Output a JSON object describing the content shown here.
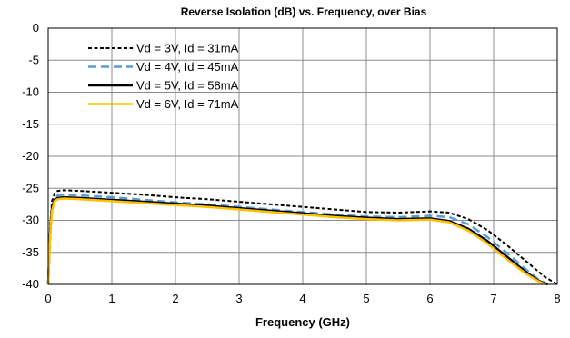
{
  "chart_data": {
    "type": "line",
    "title": "Reverse Isolation (dB) vs. Frequency, over Bias",
    "xlabel": "Frequency (GHz)",
    "ylabel": "",
    "xlim": [
      0,
      8
    ],
    "ylim": [
      -40,
      0
    ],
    "xticks": [
      "0",
      "1",
      "2",
      "3",
      "4",
      "5",
      "6",
      "7",
      "8"
    ],
    "yticks": [
      "0",
      "-5",
      "-10",
      "-15",
      "-20",
      "-25",
      "-30",
      "-35",
      "-40"
    ],
    "grid": true,
    "legend_position": "top-left",
    "series": [
      {
        "name": "Vd = 3V, Id =  31mA",
        "color": "#000000",
        "style": "dotted",
        "x": [
          0.0,
          0.03,
          0.06,
          0.1,
          0.15,
          0.25,
          0.5,
          1,
          1.5,
          2,
          2.5,
          3,
          3.5,
          4,
          4.5,
          5,
          5.5,
          6,
          6.3,
          6.6,
          6.9,
          7.2,
          7.5,
          7.8,
          8.0
        ],
        "y": [
          -40,
          -31,
          -27,
          -25.8,
          -25.4,
          -25.3,
          -25.4,
          -25.7,
          -26.0,
          -26.4,
          -26.7,
          -27.1,
          -27.5,
          -27.9,
          -28.3,
          -28.7,
          -28.8,
          -28.6,
          -28.8,
          -29.8,
          -31.5,
          -33.8,
          -36.3,
          -38.8,
          -40
        ]
      },
      {
        "name": "Vd = 4V,  Id = 45mA",
        "color": "#5b9bd5",
        "style": "dashed",
        "x": [
          0.0,
          0.03,
          0.06,
          0.1,
          0.15,
          0.25,
          0.5,
          1,
          1.5,
          2,
          2.5,
          3,
          3.5,
          4,
          4.5,
          5,
          5.5,
          6,
          6.3,
          6.6,
          6.9,
          7.2,
          7.5,
          7.7,
          7.85
        ],
        "y": [
          -40,
          -32,
          -28,
          -26.5,
          -26.1,
          -26.0,
          -26.1,
          -26.4,
          -26.8,
          -27.2,
          -27.5,
          -27.9,
          -28.3,
          -28.7,
          -29.1,
          -29.4,
          -29.5,
          -29.3,
          -29.5,
          -30.6,
          -32.6,
          -35.0,
          -37.6,
          -39.2,
          -40
        ]
      },
      {
        "name": "Vd = 5V, Id =  58mA",
        "color": "#000000",
        "style": "solid",
        "x": [
          0.0,
          0.03,
          0.06,
          0.1,
          0.15,
          0.25,
          0.5,
          1,
          1.5,
          2,
          2.5,
          3,
          3.5,
          4,
          4.5,
          5,
          5.5,
          6,
          6.3,
          6.6,
          6.9,
          7.2,
          7.5,
          7.7,
          7.85
        ],
        "y": [
          -40,
          -32,
          -28,
          -26.8,
          -26.5,
          -26.4,
          -26.5,
          -26.8,
          -27.1,
          -27.4,
          -27.7,
          -28.1,
          -28.5,
          -28.9,
          -29.3,
          -29.6,
          -29.8,
          -29.7,
          -30.1,
          -31.3,
          -33.2,
          -35.6,
          -38.0,
          -39.4,
          -40
        ]
      },
      {
        "name": "Vd = 6V,  Id =  71mA",
        "color": "#ffc000",
        "style": "solid",
        "x": [
          0.0,
          0.03,
          0.06,
          0.1,
          0.15,
          0.25,
          0.5,
          1,
          1.5,
          2,
          2.5,
          3,
          3.5,
          4,
          4.5,
          5,
          5.5,
          6,
          6.3,
          6.6,
          6.9,
          7.2,
          7.5,
          7.7,
          7.82
        ],
        "y": [
          -40,
          -32.5,
          -28.5,
          -27.0,
          -26.7,
          -26.6,
          -26.7,
          -27.0,
          -27.3,
          -27.6,
          -27.9,
          -28.3,
          -28.7,
          -29.1,
          -29.5,
          -29.8,
          -30.0,
          -29.9,
          -30.3,
          -31.6,
          -33.6,
          -36.0,
          -38.3,
          -39.5,
          -40
        ]
      }
    ]
  }
}
